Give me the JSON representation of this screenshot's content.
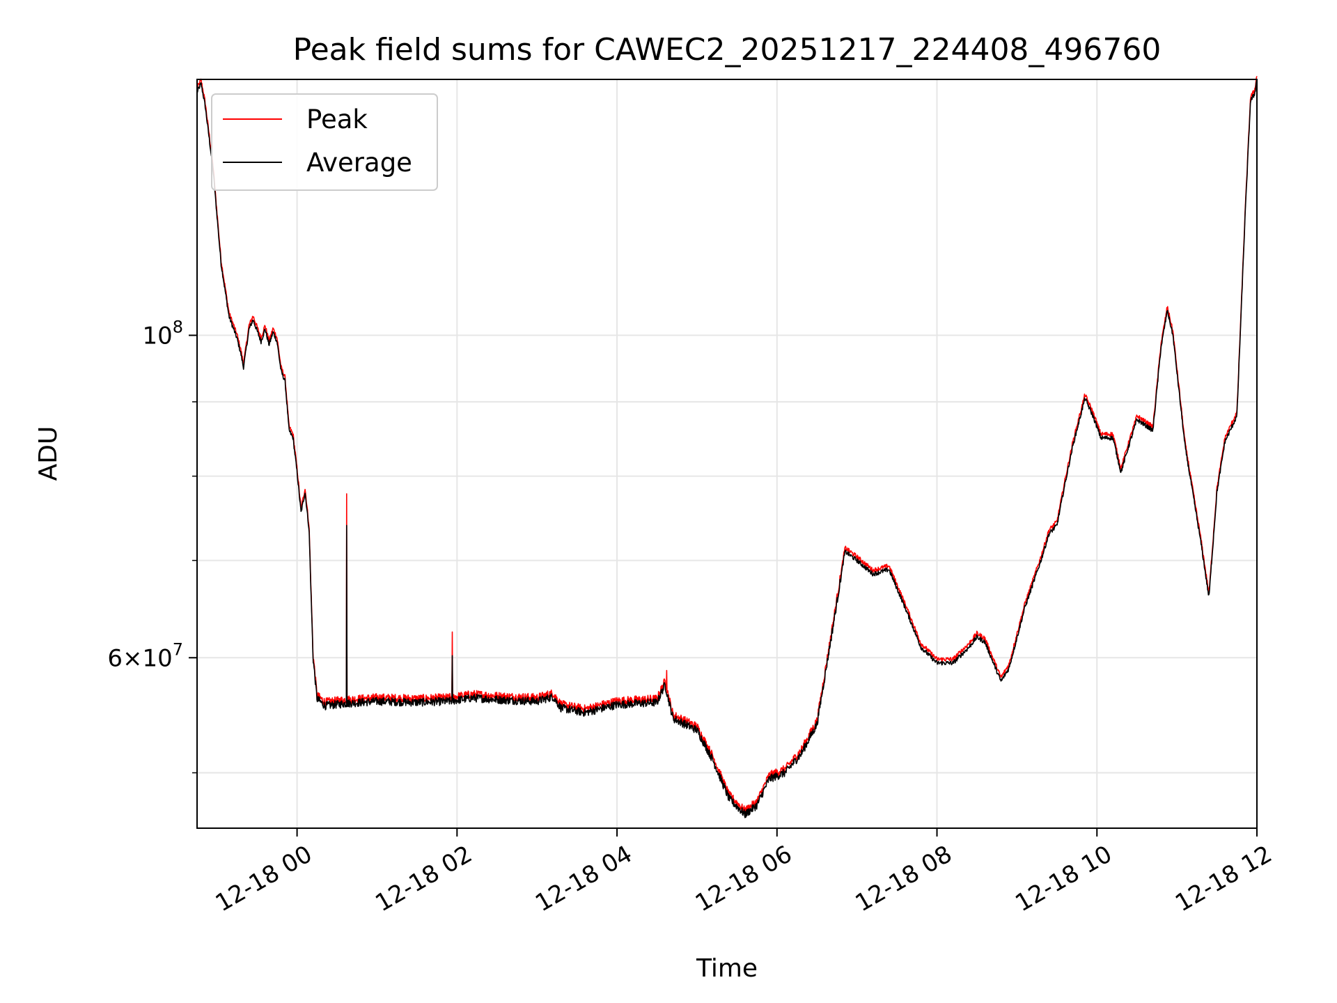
{
  "chart_data": {
    "type": "line",
    "title": "Peak field sums for CAWEC2_20251217_224408_496760",
    "xlabel": "Time",
    "ylabel": "ADU",
    "yscale": "log",
    "xlim_hours": [
      -1.25,
      12.0
    ],
    "ylim": [
      45800000,
      150000000
    ],
    "x_ticks": [
      {
        "hour": 0,
        "label": "12-18 00"
      },
      {
        "hour": 2,
        "label": "12-18 02"
      },
      {
        "hour": 4,
        "label": "12-18 04"
      },
      {
        "hour": 6,
        "label": "12-18 06"
      },
      {
        "hour": 8,
        "label": "12-18 08"
      },
      {
        "hour": 10,
        "label": "12-18 10"
      },
      {
        "hour": 12,
        "label": "12-18 12"
      }
    ],
    "y_major_ticks": [
      {
        "value": 60000000,
        "mant": "6",
        "exp": "7"
      },
      {
        "value": 100000000,
        "mant": "",
        "exp": "8"
      }
    ],
    "y_minor_ticks": [
      50000000,
      70000000,
      80000000,
      90000000
    ],
    "grid": true,
    "legend_position": "upper-left",
    "series": [
      {
        "name": "Peak",
        "color": "#ff0000",
        "offset": 1.006,
        "spikes": [
          [
            0.62,
            77800000
          ],
          [
            1.94,
            62500000
          ],
          [
            4.62,
            58800000
          ]
        ]
      },
      {
        "name": "Average",
        "color": "#000000",
        "offset": 1.0,
        "spikes": [
          [
            0.62,
            74000000
          ],
          [
            1.94,
            60200000
          ]
        ]
      }
    ],
    "profile": [
      [
        -1.25,
        147000000
      ],
      [
        -1.2,
        149000000
      ],
      [
        -1.15,
        144000000
      ],
      [
        -1.05,
        130000000
      ],
      [
        -0.95,
        112000000
      ],
      [
        -0.85,
        103000000
      ],
      [
        -0.75,
        99500000
      ],
      [
        -0.7,
        97000000
      ],
      [
        -0.67,
        95000000
      ],
      [
        -0.6,
        101000000
      ],
      [
        -0.55,
        102500000
      ],
      [
        -0.45,
        99000000
      ],
      [
        -0.4,
        101000000
      ],
      [
        -0.35,
        98500000
      ],
      [
        -0.3,
        100500000
      ],
      [
        -0.25,
        99000000
      ],
      [
        -0.2,
        94500000
      ],
      [
        -0.15,
        93000000
      ],
      [
        -0.1,
        86000000
      ],
      [
        -0.05,
        85000000
      ],
      [
        0.0,
        80500000
      ],
      [
        0.05,
        75500000
      ],
      [
        0.1,
        78000000
      ],
      [
        0.15,
        73500000
      ],
      [
        0.2,
        60000000
      ],
      [
        0.25,
        56200000
      ],
      [
        0.35,
        55600000
      ],
      [
        0.6,
        55800000
      ],
      [
        1.0,
        56000000
      ],
      [
        1.5,
        55900000
      ],
      [
        1.9,
        56000000
      ],
      [
        2.2,
        56300000
      ],
      [
        2.6,
        56100000
      ],
      [
        3.0,
        56000000
      ],
      [
        3.2,
        56400000
      ],
      [
        3.3,
        55400000
      ],
      [
        3.6,
        55000000
      ],
      [
        4.0,
        55700000
      ],
      [
        4.5,
        55900000
      ],
      [
        4.6,
        57500000
      ],
      [
        4.7,
        54500000
      ],
      [
        5.0,
        53500000
      ],
      [
        5.2,
        51000000
      ],
      [
        5.4,
        48000000
      ],
      [
        5.6,
        46800000
      ],
      [
        5.75,
        47500000
      ],
      [
        5.9,
        49500000
      ],
      [
        6.1,
        50000000
      ],
      [
        6.3,
        51500000
      ],
      [
        6.5,
        54000000
      ],
      [
        6.7,
        63000000
      ],
      [
        6.85,
        71000000
      ],
      [
        7.0,
        70000000
      ],
      [
        7.2,
        68500000
      ],
      [
        7.4,
        69000000
      ],
      [
        7.6,
        65000000
      ],
      [
        7.8,
        61000000
      ],
      [
        8.0,
        59500000
      ],
      [
        8.2,
        59500000
      ],
      [
        8.4,
        61000000
      ],
      [
        8.5,
        62000000
      ],
      [
        8.6,
        61500000
      ],
      [
        8.8,
        57800000
      ],
      [
        8.9,
        59000000
      ],
      [
        9.1,
        65000000
      ],
      [
        9.3,
        70000000
      ],
      [
        9.4,
        73000000
      ],
      [
        9.5,
        74000000
      ],
      [
        9.6,
        79000000
      ],
      [
        9.7,
        84000000
      ],
      [
        9.85,
        90500000
      ],
      [
        9.95,
        88000000
      ],
      [
        10.05,
        85000000
      ],
      [
        10.2,
        85000000
      ],
      [
        10.3,
        80500000
      ],
      [
        10.4,
        84000000
      ],
      [
        10.5,
        87500000
      ],
      [
        10.7,
        86000000
      ],
      [
        10.8,
        98000000
      ],
      [
        10.88,
        104000000
      ],
      [
        10.95,
        100000000
      ],
      [
        11.1,
        84000000
      ],
      [
        11.3,
        72000000
      ],
      [
        11.4,
        66000000
      ],
      [
        11.5,
        78000000
      ],
      [
        11.6,
        84500000
      ],
      [
        11.75,
        88000000
      ],
      [
        11.85,
        120000000
      ],
      [
        11.92,
        145000000
      ],
      [
        11.97,
        146500000
      ],
      [
        12.0,
        150000000
      ]
    ]
  }
}
